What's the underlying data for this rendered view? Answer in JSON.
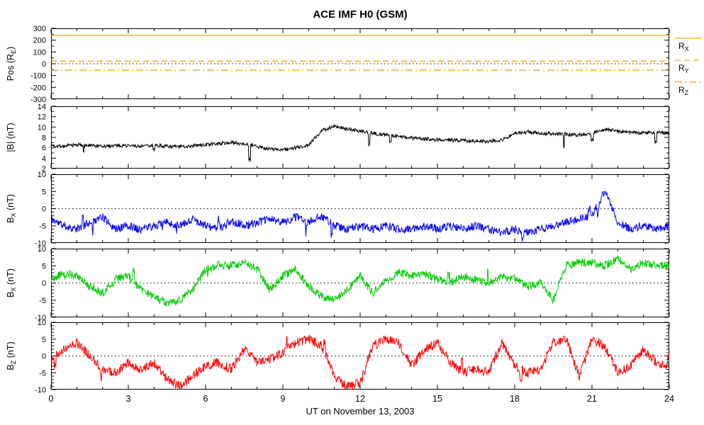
{
  "title": "ACE IMF H0 (GSM)",
  "xlabel": "UT on November 13, 2003",
  "x_ticks": [
    0,
    3,
    6,
    9,
    12,
    15,
    18,
    21,
    24
  ],
  "x_keypoints": [
    0,
    0.5,
    1,
    1.5,
    2,
    2.5,
    3,
    3.5,
    4,
    4.5,
    5,
    5.5,
    6,
    6.5,
    7,
    7.5,
    8,
    8.5,
    9,
    9.5,
    10,
    10.5,
    11,
    11.5,
    12,
    12.5,
    13,
    13.5,
    14,
    14.5,
    15,
    15.5,
    16,
    16.5,
    17,
    17.5,
    18,
    18.5,
    19,
    19.5,
    20,
    20.5,
    21,
    21.5,
    22,
    22.5,
    23,
    23.5,
    24
  ],
  "chart_data": [
    {
      "id": "position",
      "type": "line",
      "ylabel": {
        "base": "Pos (R",
        "sub": "E",
        "rest": ")"
      },
      "ylim": [
        -300,
        300
      ],
      "yticks": [
        300,
        200,
        100,
        0,
        -100,
        -200,
        -300
      ],
      "ytick_minor": 50,
      "zero_line": true,
      "series": [
        {
          "name": "R_X",
          "constant": 240,
          "color": "#ffa500",
          "dash": "solid"
        },
        {
          "name": "R_Y",
          "constant": 22,
          "color": "#ffa500",
          "dash": "dashed"
        },
        {
          "name": "R_Z",
          "constant": -55,
          "color": "#ffa500",
          "dash": "dashdot"
        }
      ],
      "legend": [
        {
          "base": "R",
          "sub": "X",
          "dash": "solid",
          "color": "#ffa500"
        },
        {
          "base": "R",
          "sub": "Y",
          "dash": "dashed",
          "color": "#ffa500"
        },
        {
          "base": "R",
          "sub": "Z",
          "dash": "dashdot",
          "color": "#ffa500"
        }
      ]
    },
    {
      "id": "bmag",
      "type": "line",
      "ylabel": {
        "base": "|B| (nT)",
        "sub": "",
        "rest": ""
      },
      "ylim": [
        2,
        14
      ],
      "yticks": [
        14,
        12,
        10,
        8,
        6,
        4,
        2
      ],
      "ytick_minor": 1,
      "zero_line": false,
      "color": "#000000",
      "noise": 0.35,
      "spike": {
        "prob": 0.005,
        "mag": 2.0,
        "dir": -1
      },
      "values": [
        6.5,
        6.3,
        6.6,
        6.4,
        6.2,
        6.5,
        6.4,
        6.3,
        6.5,
        6.3,
        6.2,
        6.4,
        6.6,
        6.8,
        7.0,
        6.8,
        6.2,
        5.8,
        5.6,
        6.0,
        6.5,
        9.3,
        10.2,
        9.6,
        9.2,
        8.8,
        8.5,
        8.2,
        7.9,
        7.7,
        7.6,
        7.5,
        7.4,
        7.3,
        7.3,
        7.5,
        8.8,
        9.0,
        8.8,
        8.7,
        8.6,
        8.5,
        8.8,
        9.6,
        9.2,
        9.0,
        8.9,
        9.0,
        8.8
      ]
    },
    {
      "id": "bx",
      "type": "line",
      "ylabel": {
        "base": "B",
        "sub": "X",
        "rest": " (nT)"
      },
      "ylim": [
        -10,
        10
      ],
      "yticks": [
        10,
        5,
        0,
        -5,
        -10
      ],
      "ytick_minor": 1,
      "zero_line": true,
      "color": "#0000ee",
      "noise": 1.2,
      "spike": {
        "prob": 0.006,
        "mag": 2.5,
        "dir": 0
      },
      "values": [
        -3,
        -5,
        -6,
        -4,
        -2.5,
        -6,
        -5,
        -6,
        -5,
        -4,
        -5,
        -3,
        -5,
        -6,
        -3.5,
        -5,
        -4,
        -3,
        -4,
        -2.5,
        -4,
        -2,
        -5,
        -6,
        -5,
        -6,
        -5,
        -6,
        -6,
        -5,
        -6,
        -5,
        -6,
        -5,
        -6,
        -7,
        -6,
        -7,
        -6,
        -5,
        -4,
        -3,
        -2,
        5,
        -4,
        -6,
        -5,
        -6,
        -5
      ]
    },
    {
      "id": "by",
      "type": "line",
      "ylabel": {
        "base": "B",
        "sub": "X",
        "rest": " (nT)"
      },
      "ylim": [
        -10,
        10
      ],
      "yticks": [
        10,
        5,
        0,
        -5,
        -10
      ],
      "ytick_minor": 1,
      "zero_line": true,
      "color": "#00cc00",
      "noise": 1.2,
      "spike": {
        "prob": 0.005,
        "mag": 2.5,
        "dir": 0
      },
      "values": [
        1,
        3,
        2,
        -1,
        -3,
        1,
        2,
        -2,
        -4,
        -6,
        -5,
        -2,
        4,
        5,
        5,
        6,
        4,
        -2,
        2,
        4,
        -1,
        -4,
        -5,
        -2,
        2,
        -3,
        1,
        3,
        2,
        3,
        1,
        0,
        2,
        1,
        0,
        2,
        1,
        -1,
        0,
        -5,
        5,
        6,
        6,
        5,
        7,
        4,
        6,
        5,
        5
      ]
    },
    {
      "id": "bz",
      "type": "line",
      "ylabel": {
        "base": "B",
        "sub": "Z",
        "rest": " (nT)"
      },
      "ylim": [
        -10,
        10
      ],
      "yticks": [
        10,
        5,
        0,
        -5,
        -10
      ],
      "ytick_minor": 1,
      "zero_line": true,
      "color": "#ff0000",
      "noise": 1.4,
      "spike": {
        "prob": 0.006,
        "mag": 2.5,
        "dir": 0
      },
      "values": [
        -1,
        2,
        4,
        0,
        -4,
        -5,
        -2,
        -4,
        -2,
        -7,
        -9,
        -6,
        -3,
        -2,
        -4,
        2,
        -2,
        -1,
        1,
        4,
        5,
        3,
        -6,
        -9,
        -8,
        3,
        5,
        4,
        -3,
        2,
        4,
        -2,
        -5,
        -4,
        -5,
        4,
        -3,
        -5,
        -4,
        4,
        5,
        -6,
        5,
        3,
        -5,
        -3,
        2,
        -2,
        -3
      ]
    }
  ]
}
